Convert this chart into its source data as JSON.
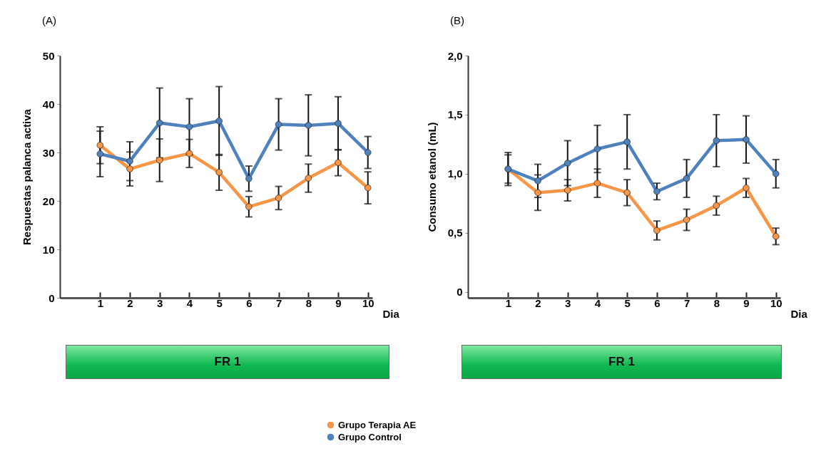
{
  "chart_data": [
    {
      "type": "line",
      "title": "(A)",
      "xlabel": "Dia",
      "ylabel": "Respuestas palanca activa",
      "categories": [
        "1",
        "2",
        "3",
        "4",
        "5",
        "6",
        "7",
        "8",
        "9",
        "10"
      ],
      "ylim": [
        0,
        50
      ],
      "yticks": [
        0,
        10,
        20,
        30,
        40,
        50
      ],
      "marker": "circle",
      "line_style": "solid",
      "legend": "bottom",
      "annotations": [
        "FR 1"
      ],
      "series": [
        {
          "name": "Grupo Terapia AE",
          "color": "#f79646",
          "values": [
            31.5,
            26.6,
            28.4,
            29.8,
            25.9,
            18.8,
            20.6,
            24.7,
            27.9,
            22.7
          ],
          "errors": [
            3.8,
            3.5,
            4.4,
            2.9,
            3.7,
            2.1,
            2.4,
            2.9,
            2.7,
            3.3
          ]
        },
        {
          "name": "Grupo Control",
          "color": "#4f81bd",
          "values": [
            29.7,
            28.2,
            36.1,
            35.3,
            36.5,
            24.6,
            35.8,
            35.6,
            36.0,
            30.0
          ],
          "errors": [
            4.7,
            4.0,
            7.2,
            5.8,
            7.1,
            2.6,
            5.3,
            6.3,
            5.5,
            3.3
          ]
        }
      ]
    },
    {
      "type": "line",
      "title": "(B)",
      "xlabel": "Dia",
      "ylabel": "Consumo etanol (mL)",
      "categories": [
        "1",
        "2",
        "3",
        "4",
        "5",
        "6",
        "7",
        "8",
        "9",
        "10"
      ],
      "ylim": [
        -0.05,
        2.0
      ],
      "yticks": [
        0,
        {
          "value": 0.5,
          "label": "0,5"
        },
        {
          "value": 1.0,
          "label": "1,0"
        },
        {
          "value": 1.5,
          "label": "1,5"
        },
        {
          "value": 2.0,
          "label": "2,0"
        }
      ],
      "marker": "circle",
      "line_style": "solid",
      "legend": "bottom",
      "annotations": [
        "FR 1"
      ],
      "series": [
        {
          "name": "Grupo Terapia AE",
          "color": "#f79646",
          "values": [
            1.04,
            0.84,
            0.86,
            0.92,
            0.84,
            0.52,
            0.61,
            0.73,
            0.88,
            0.47
          ],
          "errors": [
            0.12,
            0.15,
            0.09,
            0.12,
            0.11,
            0.08,
            0.09,
            0.08,
            0.08,
            0.07
          ]
        },
        {
          "name": "Grupo Control",
          "color": "#4f81bd",
          "values": [
            1.04,
            0.94,
            1.09,
            1.21,
            1.27,
            0.85,
            0.96,
            1.28,
            1.29,
            1.0
          ],
          "errors": [
            0.14,
            0.14,
            0.19,
            0.2,
            0.23,
            0.07,
            0.16,
            0.22,
            0.2,
            0.12
          ]
        }
      ]
    }
  ]
}
